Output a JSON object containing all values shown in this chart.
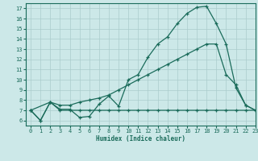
{
  "bg_color": "#cce8e8",
  "grid_color": "#aacccc",
  "line_color": "#1a6b5a",
  "xlabel": "Humidex (Indice chaleur)",
  "xlim": [
    -0.5,
    23
  ],
  "ylim": [
    5.5,
    17.5
  ],
  "yticks": [
    6,
    7,
    8,
    9,
    10,
    11,
    12,
    13,
    14,
    15,
    16,
    17
  ],
  "xticks": [
    0,
    1,
    2,
    3,
    4,
    5,
    6,
    7,
    8,
    9,
    10,
    11,
    12,
    13,
    14,
    15,
    16,
    17,
    18,
    19,
    20,
    21,
    22,
    23
  ],
  "series1_x": [
    0,
    1,
    2,
    3,
    4,
    5,
    6,
    7,
    8,
    9,
    10,
    11,
    12,
    13,
    14,
    15,
    16,
    17,
    18,
    19,
    20,
    21,
    22,
    23
  ],
  "series1_y": [
    7.0,
    6.0,
    7.8,
    7.1,
    7.1,
    6.3,
    6.4,
    7.6,
    8.4,
    7.4,
    10.0,
    10.5,
    12.2,
    13.5,
    14.2,
    15.5,
    16.5,
    17.1,
    17.2,
    15.5,
    13.5,
    9.2,
    7.5,
    7.0
  ],
  "series2_x": [
    0,
    2,
    3,
    4,
    5,
    6,
    7,
    8,
    9,
    10,
    11,
    12,
    13,
    14,
    15,
    16,
    17,
    18,
    19,
    20,
    21,
    22,
    23
  ],
  "series2_y": [
    7.0,
    7.8,
    7.5,
    7.5,
    7.8,
    8.0,
    8.2,
    8.5,
    9.0,
    9.5,
    10.0,
    10.5,
    11.0,
    11.5,
    12.0,
    12.5,
    13.0,
    13.5,
    13.5,
    10.5,
    9.5,
    7.5,
    7.0
  ],
  "series3_x": [
    0,
    1,
    2,
    3,
    4,
    5,
    6,
    7,
    8,
    9,
    10,
    11,
    12,
    13,
    14,
    15,
    16,
    17,
    18,
    19,
    20,
    21,
    22,
    23
  ],
  "series3_y": [
    7.0,
    6.0,
    7.8,
    7.0,
    7.0,
    7.0,
    7.0,
    7.0,
    7.0,
    7.0,
    7.0,
    7.0,
    7.0,
    7.0,
    7.0,
    7.0,
    7.0,
    7.0,
    7.0,
    7.0,
    7.0,
    7.0,
    7.0,
    7.0
  ]
}
